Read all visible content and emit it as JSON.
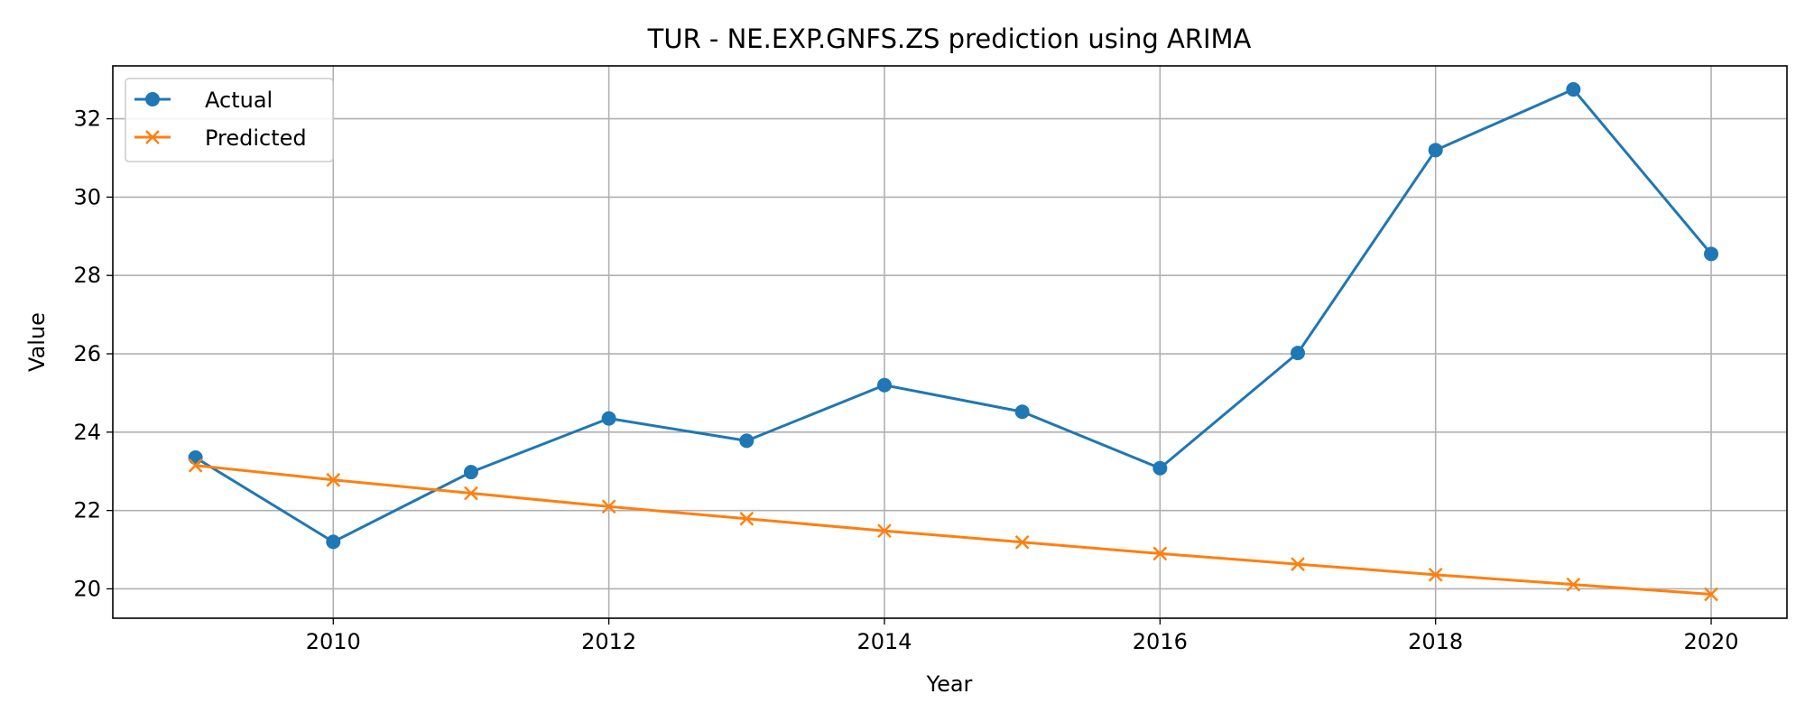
{
  "chart_data": {
    "type": "line",
    "title": "TUR - NE.EXP.GNFS.ZS prediction using ARIMA",
    "xlabel": "Year",
    "ylabel": "Value",
    "x": [
      2009,
      2010,
      2011,
      2012,
      2013,
      2014,
      2015,
      2016,
      2017,
      2018,
      2019,
      2020
    ],
    "xlim": [
      2008.4,
      2020.55
    ],
    "ylim": [
      19.25,
      33.35
    ],
    "xticks": [
      2010,
      2012,
      2014,
      2016,
      2018,
      2020
    ],
    "yticks": [
      20,
      22,
      24,
      26,
      28,
      30,
      32
    ],
    "grid": true,
    "legend_position": "top-left",
    "series": [
      {
        "name": "Actual",
        "color": "#1f77b4",
        "marker": "circle",
        "values": [
          23.35,
          21.2,
          22.98,
          24.35,
          23.78,
          25.2,
          24.52,
          23.08,
          26.02,
          31.2,
          32.75,
          28.55
        ]
      },
      {
        "name": "Predicted",
        "color": "#ff7f0e",
        "marker": "x",
        "values": [
          23.15,
          22.78,
          22.44,
          22.1,
          21.79,
          21.48,
          21.19,
          20.9,
          20.63,
          20.36,
          20.11,
          19.86
        ]
      }
    ]
  }
}
